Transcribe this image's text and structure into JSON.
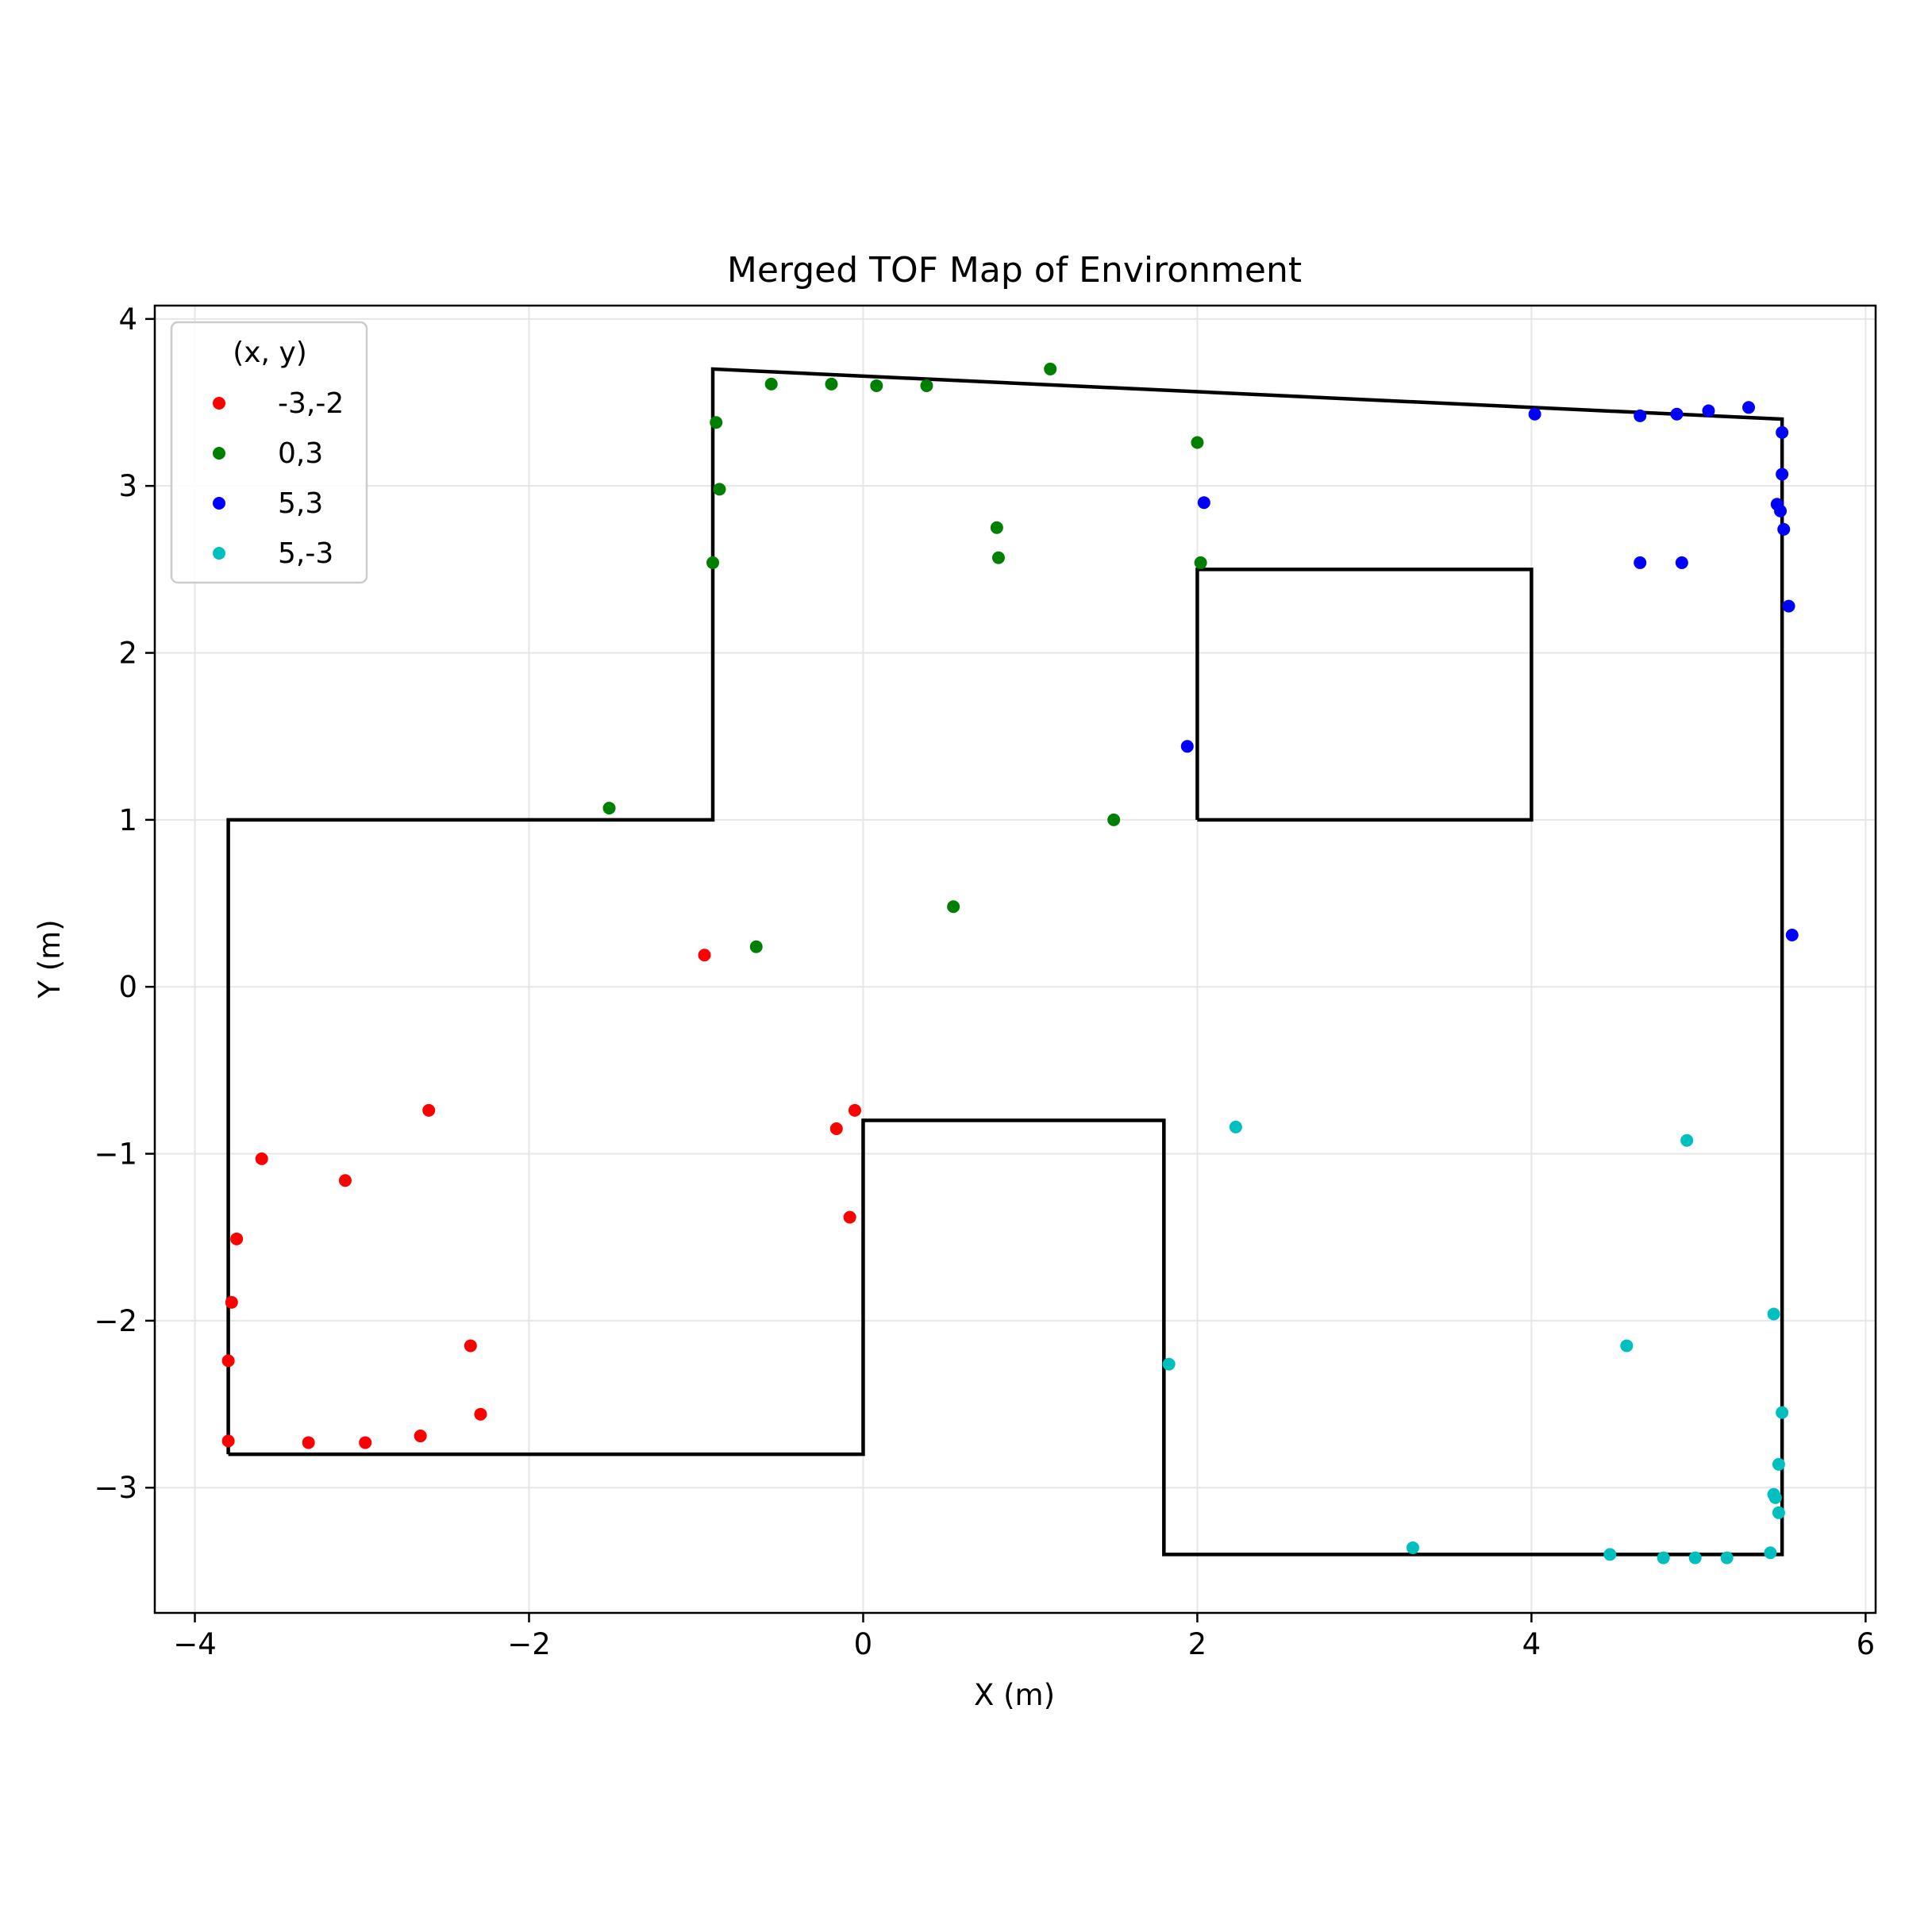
{
  "chart_data": {
    "type": "scatter",
    "title": "Merged TOF Map of Environment",
    "xlabel": "X (m)",
    "ylabel": "Y (m)",
    "xlim": [
      -4.24,
      6.06
    ],
    "ylim": [
      -3.75,
      4.08
    ],
    "xticks": [
      -4,
      -2,
      0,
      2,
      4,
      6
    ],
    "yticks": [
      -3,
      -2,
      -1,
      0,
      1,
      2,
      3,
      4
    ],
    "xtick_labels": [
      "−4",
      "−2",
      "0",
      "2",
      "4",
      "6"
    ],
    "ytick_labels": [
      "−3",
      "−2",
      "−1",
      "0",
      "1",
      "2",
      "3",
      "4"
    ],
    "grid": true,
    "legend": {
      "title": "(x, y)",
      "placement": "top-left"
    },
    "walls": [
      {
        "name": "outer-wall",
        "color": "#000000",
        "points": [
          [
            -3.8,
            -2.8
          ],
          [
            0,
            -2.8
          ],
          [
            0,
            -0.8
          ],
          [
            1.8,
            -0.8
          ],
          [
            1.8,
            -3.4
          ],
          [
            5.5,
            -3.4
          ],
          [
            5.5,
            3.4
          ],
          [
            -0.9,
            3.7
          ],
          [
            -0.9,
            1.0
          ],
          [
            -3.8,
            1.0
          ],
          [
            -3.8,
            -2.8
          ]
        ]
      },
      {
        "name": "inner-box",
        "color": "#000000",
        "points": [
          [
            2.0,
            1.0
          ],
          [
            4.0,
            1.0
          ],
          [
            4.0,
            2.5
          ],
          [
            2.0,
            2.5
          ],
          [
            2.0,
            1.0
          ]
        ]
      }
    ],
    "series": [
      {
        "name": "-3,-2",
        "color": "#ff0000",
        "points": [
          [
            -0.95,
            0.19
          ],
          [
            -2.6,
            -0.74
          ],
          [
            -3.6,
            -1.03
          ],
          [
            -3.1,
            -1.16
          ],
          [
            -0.05,
            -0.74
          ],
          [
            -0.16,
            -0.85
          ],
          [
            -0.08,
            -1.38
          ],
          [
            -3.75,
            -1.51
          ],
          [
            -3.78,
            -1.89
          ],
          [
            -3.8,
            -2.24
          ],
          [
            -2.35,
            -2.15
          ],
          [
            -2.29,
            -2.56
          ],
          [
            -3.8,
            -2.72
          ],
          [
            -3.32,
            -2.73
          ],
          [
            -2.98,
            -2.73
          ],
          [
            -2.65,
            -2.69
          ]
        ]
      },
      {
        "name": "0,3",
        "color": "#008000",
        "points": [
          [
            1.12,
            3.7
          ],
          [
            -0.55,
            3.61
          ],
          [
            -0.19,
            3.61
          ],
          [
            0.08,
            3.6
          ],
          [
            0.38,
            3.6
          ],
          [
            -0.88,
            3.38
          ],
          [
            -0.86,
            2.98
          ],
          [
            -0.9,
            2.54
          ],
          [
            2.0,
            3.26
          ],
          [
            0.8,
            2.75
          ],
          [
            0.81,
            2.57
          ],
          [
            2.02,
            2.54
          ],
          [
            -1.52,
            1.07
          ],
          [
            1.5,
            1.0
          ],
          [
            0.54,
            0.48
          ],
          [
            -0.64,
            0.24
          ]
        ]
      },
      {
        "name": "5,3",
        "color": "#0000ff",
        "points": [
          [
            4.02,
            3.43
          ],
          [
            4.65,
            3.42
          ],
          [
            4.87,
            3.43
          ],
          [
            5.06,
            3.45
          ],
          [
            5.3,
            3.47
          ],
          [
            5.5,
            3.32
          ],
          [
            5.5,
            3.07
          ],
          [
            5.47,
            2.89
          ],
          [
            5.49,
            2.85
          ],
          [
            5.51,
            2.74
          ],
          [
            5.54,
            2.28
          ],
          [
            2.04,
            2.9
          ],
          [
            4.65,
            2.54
          ],
          [
            4.9,
            2.54
          ],
          [
            1.94,
            1.44
          ],
          [
            5.56,
            0.31
          ]
        ]
      },
      {
        "name": "5,-3",
        "color": "#00bfbf",
        "points": [
          [
            2.23,
            -0.84
          ],
          [
            4.93,
            -0.92
          ],
          [
            5.45,
            -1.96
          ],
          [
            4.57,
            -2.15
          ],
          [
            1.83,
            -2.26
          ],
          [
            5.5,
            -2.55
          ],
          [
            5.48,
            -2.86
          ],
          [
            5.45,
            -3.04
          ],
          [
            5.46,
            -3.06
          ],
          [
            5.48,
            -3.15
          ],
          [
            3.29,
            -3.36
          ],
          [
            4.47,
            -3.4
          ],
          [
            4.79,
            -3.42
          ],
          [
            4.98,
            -3.42
          ],
          [
            5.17,
            -3.42
          ],
          [
            5.43,
            -3.39
          ]
        ]
      }
    ]
  }
}
